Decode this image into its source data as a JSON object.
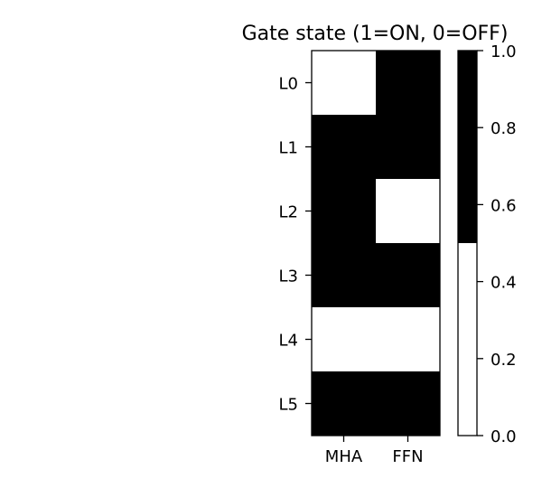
{
  "chart_data": {
    "type": "heatmap",
    "title": "Gate state (1=ON, 0=OFF)",
    "x_categories": [
      "MHA",
      "FFN"
    ],
    "y_categories": [
      "L0",
      "L1",
      "L2",
      "L3",
      "L4",
      "L5"
    ],
    "values": [
      [
        0,
        1
      ],
      [
        1,
        1
      ],
      [
        1,
        0
      ],
      [
        1,
        1
      ],
      [
        0,
        0
      ],
      [
        1,
        1
      ]
    ],
    "colormap": {
      "0": "#ffffff",
      "1": "#000000"
    },
    "colorbar": {
      "range": [
        0,
        1
      ],
      "ticks": [
        0,
        0.2,
        0.4,
        0.6,
        0.8,
        1.0
      ],
      "tick_labels": [
        "0.0",
        "0.2",
        "0.4",
        "0.6",
        "0.8",
        "1.0"
      ]
    }
  }
}
